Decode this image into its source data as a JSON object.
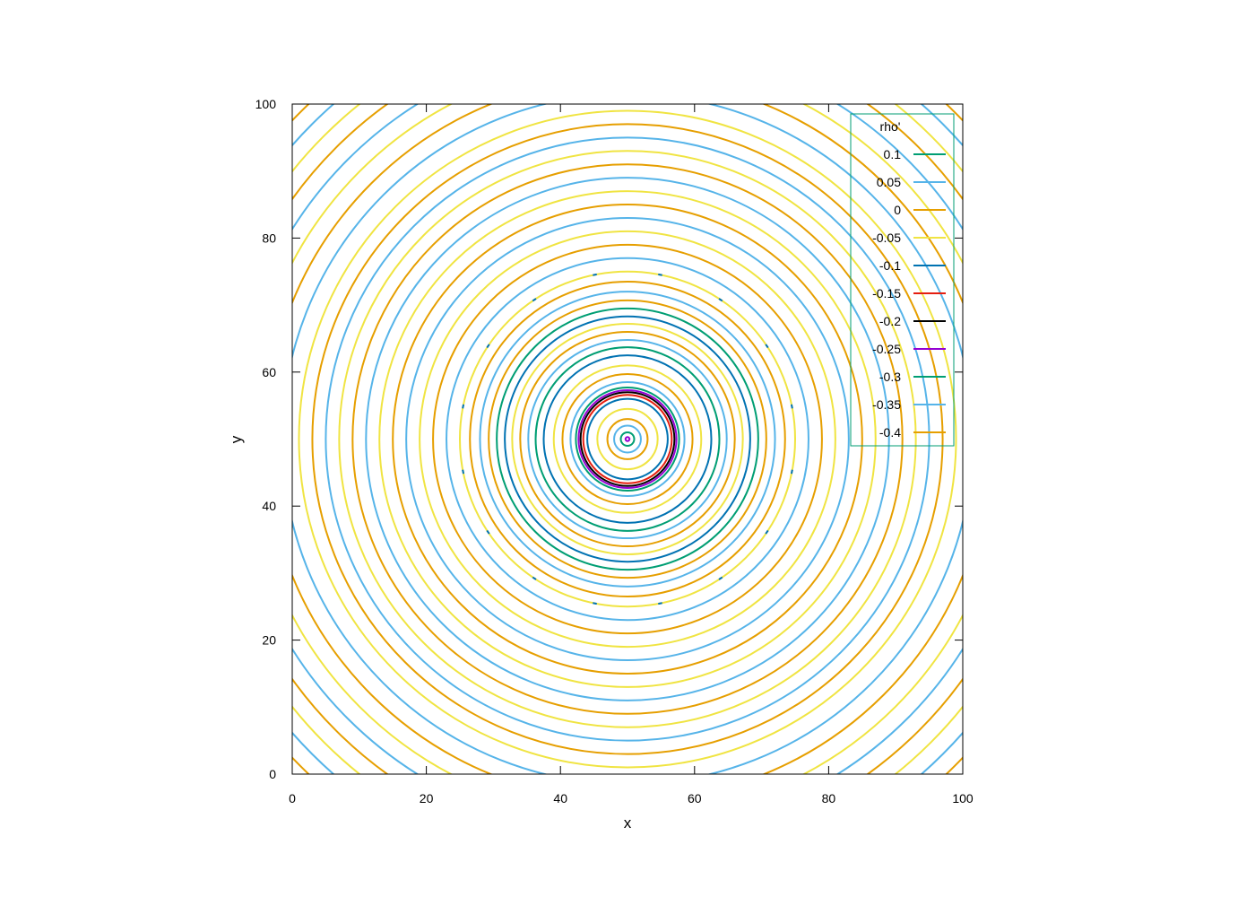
{
  "chart_data": {
    "type": "contour",
    "xlabel": "x",
    "ylabel": "y",
    "xlim": [
      0,
      100
    ],
    "ylim": [
      0,
      100
    ],
    "x_ticks": [
      0,
      20,
      40,
      60,
      80,
      100
    ],
    "y_ticks": [
      0,
      20,
      40,
      60,
      80,
      100
    ],
    "grid": false,
    "legend_title": "rho'",
    "legend_position": "top-right",
    "center": [
      50,
      50
    ],
    "levels": [
      {
        "label": "0.1",
        "color": "#009e73"
      },
      {
        "label": "0.05",
        "color": "#56b4e9"
      },
      {
        "label": "0",
        "color": "#e69f00"
      },
      {
        "label": "-0.05",
        "color": "#f0e442"
      },
      {
        "label": "-0.1",
        "color": "#0072b2"
      },
      {
        "label": "-0.15",
        "color": "#e51e10"
      },
      {
        "label": "-0.2",
        "color": "#000000"
      },
      {
        "label": "-0.25",
        "color": "#9400d3"
      },
      {
        "label": "-0.3",
        "color": "#009e73"
      },
      {
        "label": "-0.35",
        "color": "#56b4e9"
      },
      {
        "label": "-0.4",
        "color": "#e69f00"
      }
    ],
    "contours": [
      {
        "r": 0.3,
        "color": "#9400d3"
      },
      {
        "r": 1.0,
        "color": "#009e73"
      },
      {
        "r": 2.0,
        "color": "#56b4e9"
      },
      {
        "r": 3.0,
        "color": "#e69f00"
      },
      {
        "r": 4.5,
        "color": "#f0e442"
      },
      {
        "r": 6.0,
        "color": "#0072b2"
      },
      {
        "r": 6.6,
        "color": "#e51e10"
      },
      {
        "r": 7.0,
        "color": "#000000"
      },
      {
        "r": 7.3,
        "color": "#9400d3"
      },
      {
        "r": 7.7,
        "color": "#009e73"
      },
      {
        "r": 8.5,
        "color": "#56b4e9"
      },
      {
        "r": 9.7,
        "color": "#e69f00"
      },
      {
        "r": 11.0,
        "color": "#f0e442"
      },
      {
        "r": 12.5,
        "color": "#0072b2"
      },
      {
        "r": 13.7,
        "color": "#009e73"
      },
      {
        "r": 14.8,
        "color": "#56b4e9"
      },
      {
        "r": 16.0,
        "color": "#e69f00"
      },
      {
        "r": 17.2,
        "color": "#f0e442"
      },
      {
        "r": 18.3,
        "color": "#0072b2"
      },
      {
        "r": 19.5,
        "color": "#009e73"
      },
      {
        "r": 20.7,
        "color": "#e69f00"
      },
      {
        "r": 22.0,
        "color": "#56b4e9"
      },
      {
        "r": 23.5,
        "color": "#e69f00"
      },
      {
        "r": 25.0,
        "color": "#f0e442"
      },
      {
        "r": 27.0,
        "color": "#56b4e9"
      },
      {
        "r": 29.0,
        "color": "#e69f00"
      },
      {
        "r": 31.0,
        "color": "#f0e442"
      },
      {
        "r": 33.0,
        "color": "#56b4e9"
      },
      {
        "r": 35.0,
        "color": "#e69f00"
      },
      {
        "r": 37.0,
        "color": "#f0e442"
      },
      {
        "r": 39.0,
        "color": "#56b4e9"
      },
      {
        "r": 41.0,
        "color": "#e69f00"
      },
      {
        "r": 43.0,
        "color": "#f0e442"
      },
      {
        "r": 45.0,
        "color": "#56b4e9"
      },
      {
        "r": 47.0,
        "color": "#e69f00"
      },
      {
        "r": 49.0,
        "color": "#f0e442"
      },
      {
        "r": 51.5,
        "color": "#56b4e9"
      },
      {
        "r": 54.0,
        "color": "#e69f00"
      },
      {
        "r": 56.5,
        "color": "#f0e442"
      },
      {
        "r": 59.0,
        "color": "#56b4e9"
      },
      {
        "r": 61.5,
        "color": "#e69f00"
      },
      {
        "r": 64.0,
        "color": "#f0e442"
      },
      {
        "r": 66.5,
        "color": "#56b4e9"
      },
      {
        "r": 69.0,
        "color": "#e69f00"
      },
      {
        "r": 71.5,
        "color": "#f0e442"
      }
    ],
    "fragment_ring_radius": 25.0,
    "fragment_color": "#0072b2"
  }
}
